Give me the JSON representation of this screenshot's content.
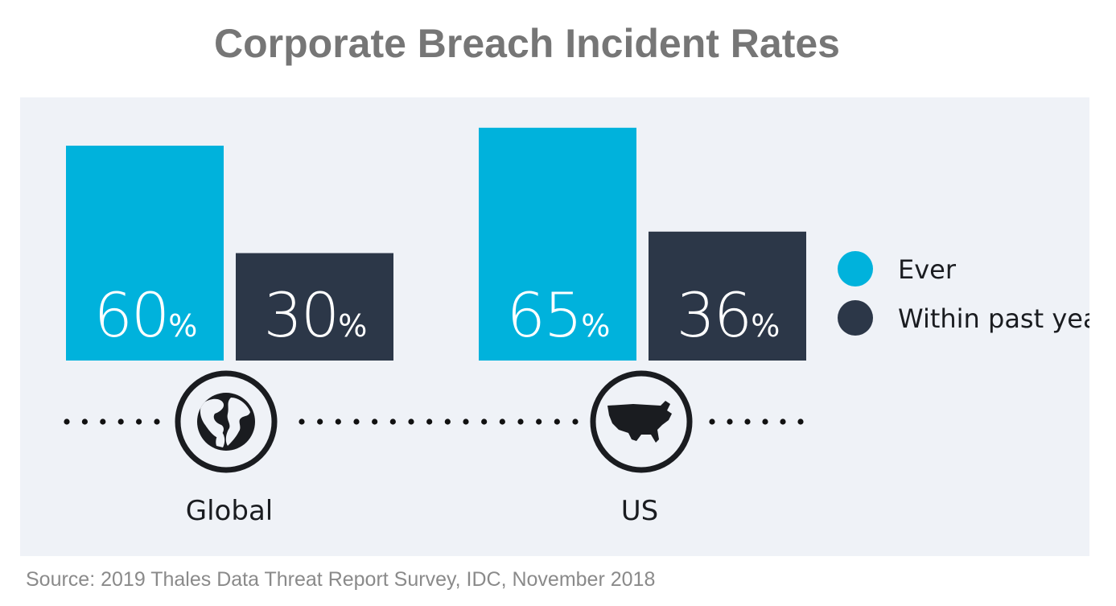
{
  "chart_data": {
    "type": "bar",
    "title": "Corporate Breach Incident Rates",
    "categories": [
      "Global",
      "US"
    ],
    "series": [
      {
        "name": "Ever",
        "values": [
          60,
          65
        ],
        "color": "#00b2dc"
      },
      {
        "name": "Within past year",
        "values": [
          30,
          36
        ],
        "color": "#2c3748"
      }
    ],
    "unit": "%",
    "icons": [
      "globe-icon",
      "us-map-icon"
    ],
    "legend_position": "right",
    "grid": false
  },
  "source": "Source: 2019 Thales Data Threat Report Survey, IDC, November 2018",
  "colors": {
    "background_panel": "#eff2f7",
    "title": "#767676",
    "dots": "#111111"
  }
}
